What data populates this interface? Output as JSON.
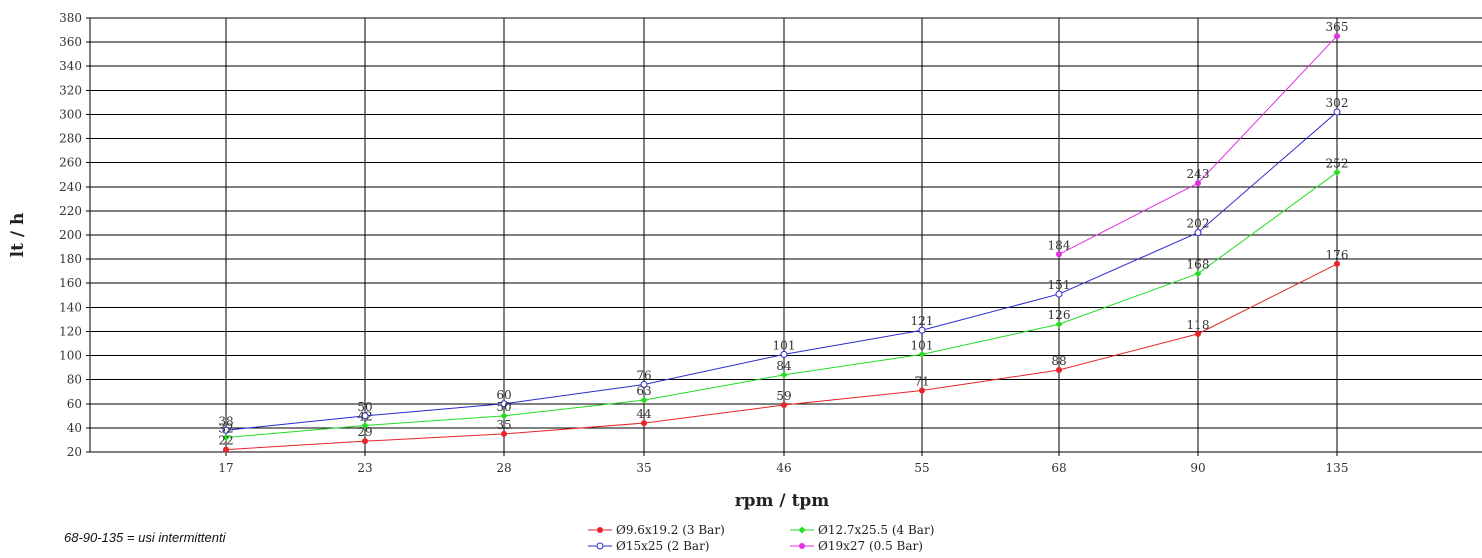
{
  "chart_data": {
    "type": "line",
    "xlabel": "rpm / tpm",
    "ylabel": "lt / h",
    "categories": [
      "17",
      "23",
      "28",
      "35",
      "46",
      "55",
      "68",
      "90",
      "135"
    ],
    "ylim": [
      20,
      380
    ],
    "yticks": [
      20,
      40,
      60,
      80,
      100,
      120,
      140,
      160,
      180,
      200,
      220,
      240,
      260,
      280,
      300,
      320,
      340,
      360,
      380
    ],
    "grid": true,
    "legend_position": "bottom",
    "series": [
      {
        "name": "Ø9.6x19.2 (3 Bar)",
        "color": "#e8242a",
        "marker": "filled",
        "values": [
          22,
          29,
          35,
          44,
          59,
          71,
          88,
          118,
          176
        ],
        "labels": [
          "22",
          "29",
          "35",
          "44",
          "59",
          "71",
          "88",
          "118",
          "176"
        ]
      },
      {
        "name": "Ø12.7x25.5 (4 Bar)",
        "color": "#22dd22",
        "marker": "filled",
        "values": [
          32,
          42,
          50,
          63,
          84,
          101,
          126,
          168,
          252
        ],
        "labels": [
          "32",
          "42",
          "50",
          "63",
          "84",
          "101",
          "126",
          "168",
          "252"
        ]
      },
      {
        "name": "Ø15x25 (2 Bar)",
        "color": "#2a2acc",
        "marker": "hollow",
        "values": [
          38,
          50,
          60,
          76,
          101,
          121,
          151,
          202,
          302
        ],
        "labels": [
          "38",
          "50",
          "60",
          "76",
          "101",
          "121",
          "151",
          "202",
          "302"
        ]
      },
      {
        "name": "Ø19x27 (0.5 Bar)",
        "color": "#e030e0",
        "marker": "filled",
        "values": [
          null,
          null,
          null,
          null,
          null,
          null,
          184,
          243,
          365
        ],
        "labels": [
          null,
          null,
          null,
          null,
          null,
          null,
          "184",
          "243",
          "365"
        ]
      }
    ]
  },
  "note": "68-90-135 = usi intermittenti"
}
